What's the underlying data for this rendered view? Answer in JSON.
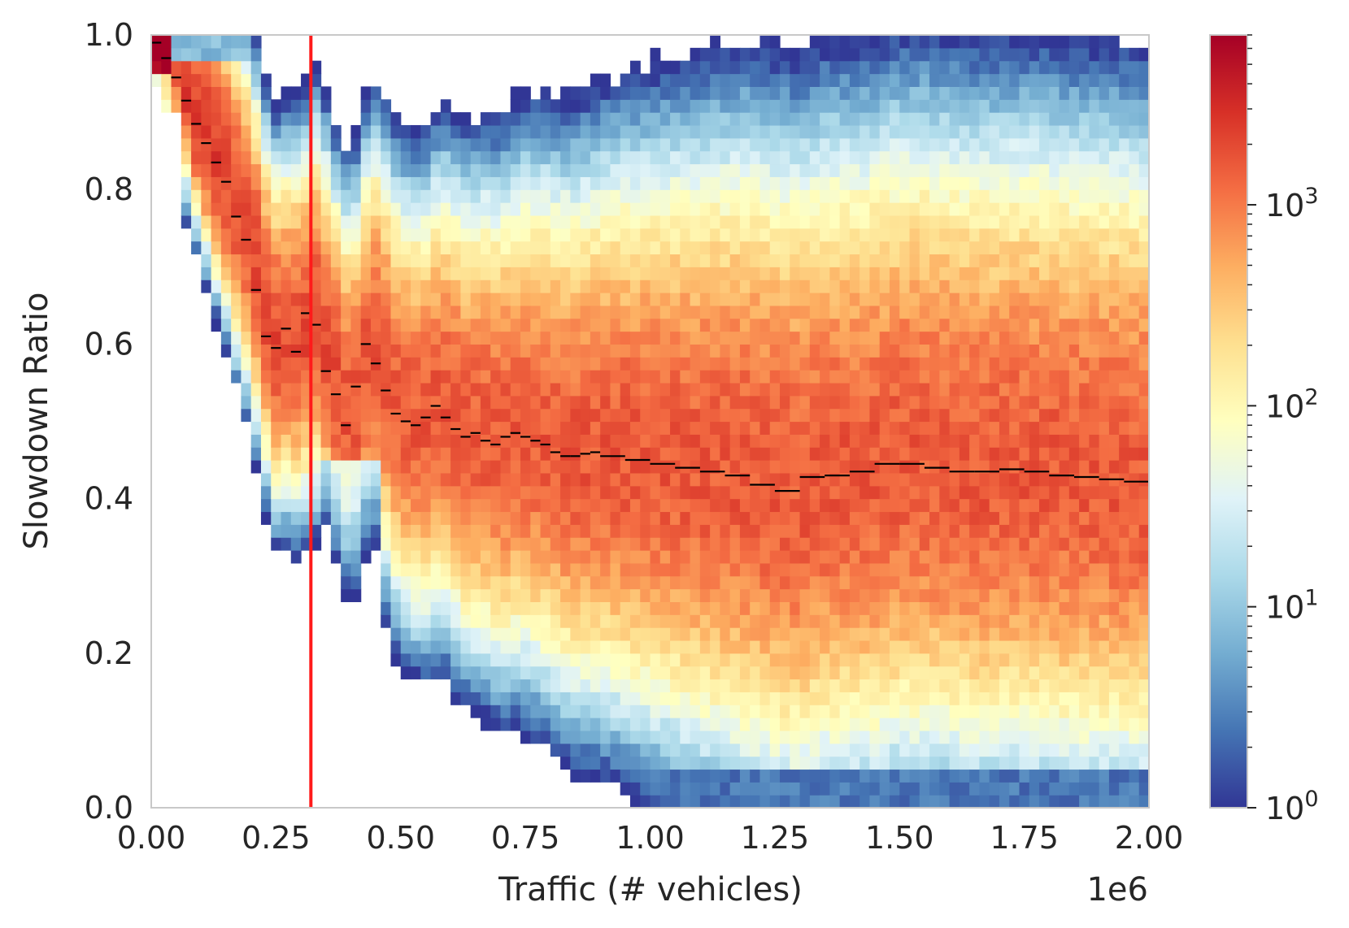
{
  "chart_data": {
    "type": "heatmap",
    "title": "",
    "xlabel": "Traffic (# vehicles)",
    "ylabel": "Slowdown Ratio",
    "x_offset_label": "1e6",
    "xlim": [
      0,
      2000000
    ],
    "ylim": [
      0,
      1
    ],
    "x_ticks": [
      0,
      250000,
      500000,
      750000,
      1000000,
      1250000,
      1500000,
      1750000,
      2000000
    ],
    "x_tick_labels": [
      "0.00",
      "0.25",
      "0.50",
      "0.75",
      "1.00",
      "1.25",
      "1.50",
      "1.75",
      "2.00"
    ],
    "y_ticks": [
      0,
      0.2,
      0.4,
      0.6,
      0.8,
      1.0
    ],
    "y_tick_labels": [
      "0.0",
      "0.2",
      "0.4",
      "0.6",
      "0.8",
      "1.0"
    ],
    "colorbar": {
      "scale": "log",
      "colormap": "RdYlBu_r",
      "range": [
        1,
        7000
      ],
      "ticks": [
        1,
        10,
        100,
        1000
      ],
      "tick_labels": [
        {
          "base": "10",
          "exp": "0"
        },
        {
          "base": "10",
          "exp": "1"
        },
        {
          "base": "10",
          "exp": "2"
        },
        {
          "base": "10",
          "exp": "3"
        }
      ]
    },
    "vertical_line": {
      "x": 320000,
      "color": "#ff1a1a"
    },
    "median_line": {
      "color": "#000000",
      "x": [
        20000,
        40000,
        60000,
        80000,
        100000,
        120000,
        140000,
        160000,
        180000,
        200000,
        220000,
        240000,
        260000,
        280000,
        300000,
        320000,
        340000,
        360000,
        380000,
        400000,
        420000,
        440000,
        460000,
        480000,
        500000,
        520000,
        540000,
        560000,
        580000,
        600000,
        620000,
        640000,
        660000,
        680000,
        700000,
        720000,
        740000,
        760000,
        780000,
        800000,
        820000,
        840000,
        860000,
        880000,
        900000,
        950000,
        1000000,
        1050000,
        1100000,
        1150000,
        1200000,
        1250000,
        1300000,
        1350000,
        1400000,
        1450000,
        1500000,
        1550000,
        1600000,
        1650000,
        1700000,
        1750000,
        1800000,
        1850000,
        1900000,
        1950000,
        2000000
      ],
      "y": [
        0.99,
        0.97,
        0.945,
        0.915,
        0.885,
        0.86,
        0.835,
        0.81,
        0.765,
        0.735,
        0.67,
        0.61,
        0.595,
        0.62,
        0.59,
        0.64,
        0.625,
        0.565,
        0.535,
        0.495,
        0.545,
        0.6,
        0.575,
        0.54,
        0.51,
        0.5,
        0.495,
        0.505,
        0.52,
        0.505,
        0.49,
        0.48,
        0.485,
        0.475,
        0.47,
        0.48,
        0.485,
        0.48,
        0.475,
        0.47,
        0.46,
        0.455,
        0.455,
        0.458,
        0.46,
        0.455,
        0.45,
        0.445,
        0.44,
        0.435,
        0.43,
        0.418,
        0.41,
        0.428,
        0.43,
        0.435,
        0.445,
        0.445,
        0.44,
        0.435,
        0.435,
        0.438,
        0.435,
        0.43,
        0.428,
        0.425,
        0.422
      ]
    },
    "bins": {
      "nx": 100,
      "ny": 60
    }
  }
}
